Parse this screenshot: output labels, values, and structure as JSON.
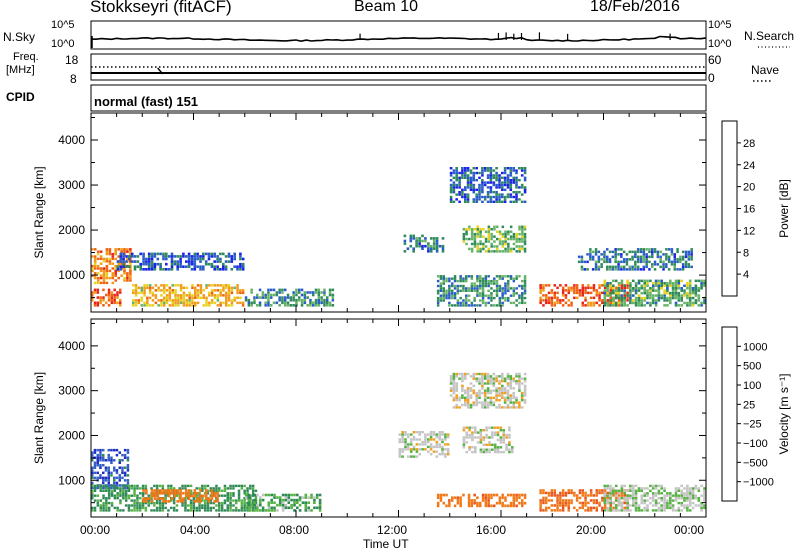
{
  "header": {
    "station": "Stokkseyri (fitACF)",
    "beam": "Beam 10",
    "date": "18/Feb/2016"
  },
  "top_panels": {
    "nsky_label": "N.Sky",
    "nsearch_label": "N.Search",
    "left_ticks": [
      "10^5",
      "10^0"
    ],
    "right_ticks": [
      "10^5",
      "10^0"
    ],
    "freq_label_1": "Freq.",
    "freq_label_2": "[MHz]",
    "freq_ticks": [
      "18",
      "8"
    ],
    "nave_ticks": [
      "60",
      "0"
    ],
    "nave_label": "Nave",
    "cpid_label": "CPID",
    "cpid_value": "normal (fast) 151"
  },
  "x_axis": {
    "label": "Time UT",
    "ticks": [
      "00:00",
      "04:00",
      "08:00",
      "12:00",
      "16:00",
      "20:00",
      "00:00"
    ]
  },
  "chart_data": [
    {
      "type": "heatmap",
      "title": "",
      "xlabel": "Time UT",
      "ylabel": "Slant Range [km]",
      "xlim": [
        0,
        24
      ],
      "ylim": [
        180,
        4600
      ],
      "y_ticks": [
        1000,
        2000,
        3000,
        4000
      ],
      "colorbar": {
        "label": "Power [dB]",
        "ticks": [
          "4",
          "8",
          "12",
          "16",
          "20",
          "24",
          "28"
        ],
        "colors": [
          "#1a22e6",
          "#2a5cc8",
          "#2e8a5a",
          "#66b266",
          "#e8d21e",
          "#f09a18",
          "#f06010",
          "#e82418"
        ]
      },
      "clusters": [
        {
          "t": [
            0.0,
            1.6
          ],
          "r": [
            800,
            1600
          ],
          "power": 24
        },
        {
          "t": [
            0.0,
            1.2
          ],
          "r": [
            300,
            700
          ],
          "power": 26
        },
        {
          "t": [
            1.6,
            6.0
          ],
          "r": [
            300,
            800
          ],
          "power": 20
        },
        {
          "t": [
            6.0,
            9.5
          ],
          "r": [
            300,
            700
          ],
          "power": 10
        },
        {
          "t": [
            1.0,
            6.0
          ],
          "r": [
            1100,
            1500
          ],
          "power": 6
        },
        {
          "t": [
            12.2,
            13.8
          ],
          "r": [
            1500,
            1900
          ],
          "power": 8
        },
        {
          "t": [
            14.5,
            17.0
          ],
          "r": [
            1500,
            2100
          ],
          "power": 14
        },
        {
          "t": [
            14.0,
            17.0
          ],
          "r": [
            2600,
            3400
          ],
          "power": 6
        },
        {
          "t": [
            13.5,
            17.0
          ],
          "r": [
            300,
            1000
          ],
          "power": 10
        },
        {
          "t": [
            17.5,
            21.0
          ],
          "r": [
            300,
            800
          ],
          "power": 27
        },
        {
          "t": [
            20.0,
            24.0
          ],
          "r": [
            300,
            900
          ],
          "power": 12
        },
        {
          "t": [
            19.0,
            23.5
          ],
          "r": [
            1100,
            1600
          ],
          "power": 8
        }
      ]
    },
    {
      "type": "heatmap",
      "title": "",
      "xlabel": "Time UT",
      "ylabel": "Slant Range [km]",
      "xlim": [
        0,
        24
      ],
      "ylim": [
        180,
        4600
      ],
      "y_ticks": [
        1000,
        2000,
        3000,
        4000
      ],
      "colorbar": {
        "label": "Velocity [m s⁻¹]",
        "ticks": [
          "1000",
          "500",
          "100",
          "25",
          "−25",
          "−100",
          "−500",
          "−1000"
        ],
        "colors": [
          "#1f2ec0",
          "#3560c8",
          "#2f8a55",
          "#56b242",
          "#c4c4c4",
          "#f0a020",
          "#f07818",
          "#e8541c",
          "#e82418"
        ]
      },
      "clusters": [
        {
          "t": [
            0.0,
            1.5
          ],
          "r": [
            800,
            1700
          ],
          "vel": 600
        },
        {
          "t": [
            0.0,
            6.5
          ],
          "r": [
            300,
            900
          ],
          "vel": 80
        },
        {
          "t": [
            2.0,
            5.0
          ],
          "r": [
            500,
            800
          ],
          "vel": -150
        },
        {
          "t": [
            6.0,
            9.0
          ],
          "r": [
            300,
            700
          ],
          "vel": 50
        },
        {
          "t": [
            12.0,
            14.0
          ],
          "r": [
            1500,
            2100
          ],
          "vel": 0
        },
        {
          "t": [
            14.5,
            16.5
          ],
          "r": [
            1600,
            2200
          ],
          "vel": 0
        },
        {
          "t": [
            14.0,
            17.0
          ],
          "r": [
            2600,
            3400
          ],
          "vel": 0
        },
        {
          "t": [
            13.5,
            17.0
          ],
          "r": [
            400,
            700
          ],
          "vel": -200
        },
        {
          "t": [
            17.5,
            21.0
          ],
          "r": [
            300,
            800
          ],
          "vel": -250
        },
        {
          "t": [
            20.0,
            24.0
          ],
          "r": [
            300,
            900
          ],
          "vel": 20
        }
      ]
    }
  ]
}
